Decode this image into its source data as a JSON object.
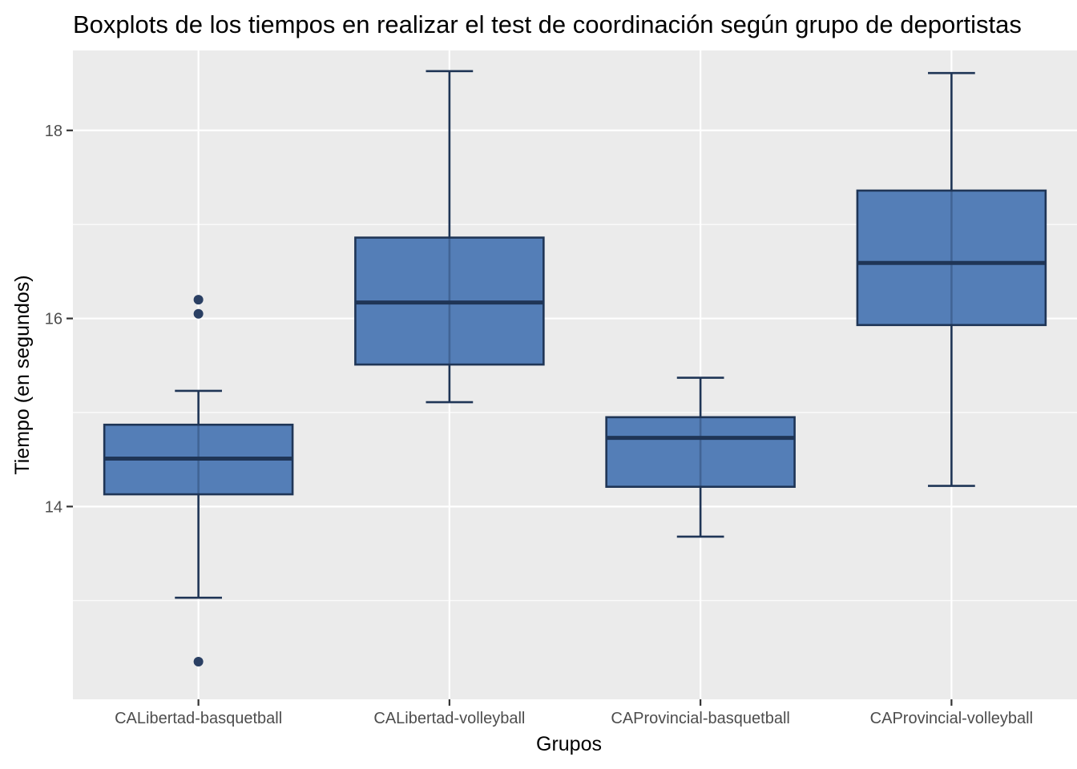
{
  "chart_data": {
    "type": "boxplot",
    "title": "Boxplots de los tiempos en realizar el test de coordinación según grupo de deportistas",
    "xlabel": "Grupos",
    "ylabel": "Tiempo (en segundos)",
    "ylim": [
      11.95,
      18.85
    ],
    "yticks": [
      14,
      16,
      18
    ],
    "ytick_labels": [
      "14",
      "16",
      "18"
    ],
    "grid": true,
    "legend": "none",
    "categories": [
      "CALibertad-basquetball",
      "CALibertad-volleyball",
      "CAProvincial-basquetball",
      "CAProvincial-volleyball"
    ],
    "boxes": [
      {
        "category": "CALibertad-basquetball",
        "whisker_low": 13.03,
        "q1": 14.13,
        "median": 14.51,
        "q3": 14.87,
        "whisker_high": 15.23,
        "outliers": [
          12.35,
          16.05,
          16.2
        ]
      },
      {
        "category": "CALibertad-volleyball",
        "whisker_low": 15.11,
        "q1": 15.51,
        "median": 16.17,
        "q3": 16.86,
        "whisker_high": 18.63,
        "outliers": []
      },
      {
        "category": "CAProvincial-basquetball",
        "whisker_low": 13.68,
        "q1": 14.21,
        "median": 14.73,
        "q3": 14.95,
        "whisker_high": 15.37,
        "outliers": []
      },
      {
        "category": "CAProvincial-volleyball",
        "whisker_low": 14.22,
        "q1": 15.93,
        "median": 16.59,
        "q3": 17.36,
        "whisker_high": 18.61,
        "outliers": []
      }
    ],
    "colors": {
      "panel_background": "#ebebeb",
      "grid": "#ffffff",
      "box_fill": "#4e7ab5",
      "box_line": "#1f3556",
      "outlier": "#2a3f63",
      "tick": "#333333"
    }
  }
}
